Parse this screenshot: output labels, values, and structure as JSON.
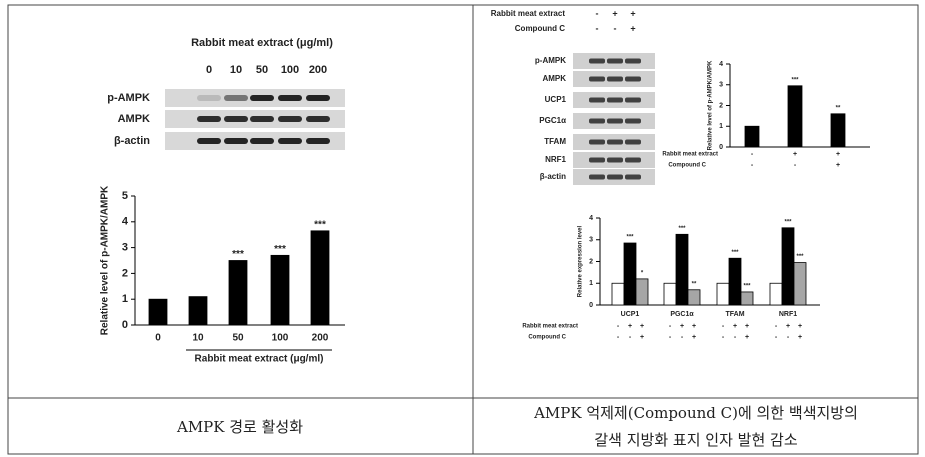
{
  "left_blot": {
    "title": "Rabbit meat extract (μg/ml)",
    "lanes": [
      "0",
      "10",
      "50",
      "100",
      "200"
    ],
    "rows": [
      "p-AMPK",
      "AMPK",
      "β-actin"
    ]
  },
  "right_blot": {
    "conditions": [
      {
        "label": "Rabbit meat extract",
        "signs": [
          "-",
          "+",
          "+"
        ]
      },
      {
        "label": "Compound C",
        "signs": [
          "-",
          "-",
          "+"
        ]
      }
    ],
    "rows": [
      "p-AMPK",
      "AMPK",
      "UCP1",
      "PGC1α",
      "TFAM",
      "NRF1",
      "β-actin"
    ]
  },
  "chart_data": [
    {
      "type": "bar",
      "y_label": "Relative level of p-AMPK/AMPK",
      "x_label": "Rabbit meat extract (μg/ml)",
      "categories": [
        "0",
        "10",
        "50",
        "100",
        "200"
      ],
      "values": [
        1,
        1.1,
        2.5,
        2.7,
        3.65
      ],
      "annotations": [
        null,
        null,
        "***",
        "***",
        "***"
      ],
      "color": "#000000",
      "ylim": [
        0,
        5
      ],
      "yticks": [
        0,
        1,
        2,
        3,
        4,
        5
      ]
    },
    {
      "type": "bar",
      "y_label": "Relative level of p-AMPK/AMPK",
      "values": [
        1,
        2.95,
        1.6
      ],
      "annotations": [
        null,
        "***",
        "**"
      ],
      "color": "#000000",
      "conditions": [
        {
          "label": "Rabbit meat extract",
          "signs": [
            "-",
            "+",
            "+"
          ]
        },
        {
          "label": "Compound C",
          "signs": [
            "-",
            "-",
            "+"
          ]
        }
      ],
      "ylim": [
        0,
        4
      ],
      "yticks": [
        0,
        1,
        2,
        3,
        4
      ]
    },
    {
      "type": "grouped_bar",
      "y_label": "Relative expression level",
      "categories": [
        "UCP1",
        "PGC1α",
        "TFAM",
        "NRF1"
      ],
      "series": [
        {
          "color": "#ffffff",
          "values": [
            1,
            1,
            1,
            1
          ],
          "annotations": [
            null,
            null,
            null,
            null
          ]
        },
        {
          "color": "#000000",
          "values": [
            2.85,
            3.25,
            2.15,
            3.55
          ],
          "annotations": [
            "***",
            "***",
            "***",
            "***"
          ]
        },
        {
          "color": "#a6a6a6",
          "values": [
            1.2,
            0.7,
            0.6,
            1.95
          ],
          "annotations": [
            "*",
            "**",
            "***",
            "***"
          ]
        }
      ],
      "conditions": [
        {
          "label": "Rabbit meat extract",
          "signs": [
            "-",
            "+",
            "+",
            "-",
            "+",
            "+",
            "-",
            "+",
            "+",
            "-",
            "+",
            "+"
          ]
        },
        {
          "label": "Compound C",
          "signs": [
            "-",
            "-",
            "+",
            "-",
            "-",
            "+",
            "-",
            "-",
            "+",
            "-",
            "-",
            "+"
          ]
        }
      ],
      "ylim": [
        0,
        4
      ],
      "yticks": [
        0,
        1,
        2,
        3,
        4
      ]
    }
  ],
  "captions": {
    "left": "AMPK 경로 활성화",
    "right": [
      "AMPK 억제제(Compound C)에 의한 백색지방의",
      "갈색 지방화 표지 인자 발현 감소"
    ]
  }
}
